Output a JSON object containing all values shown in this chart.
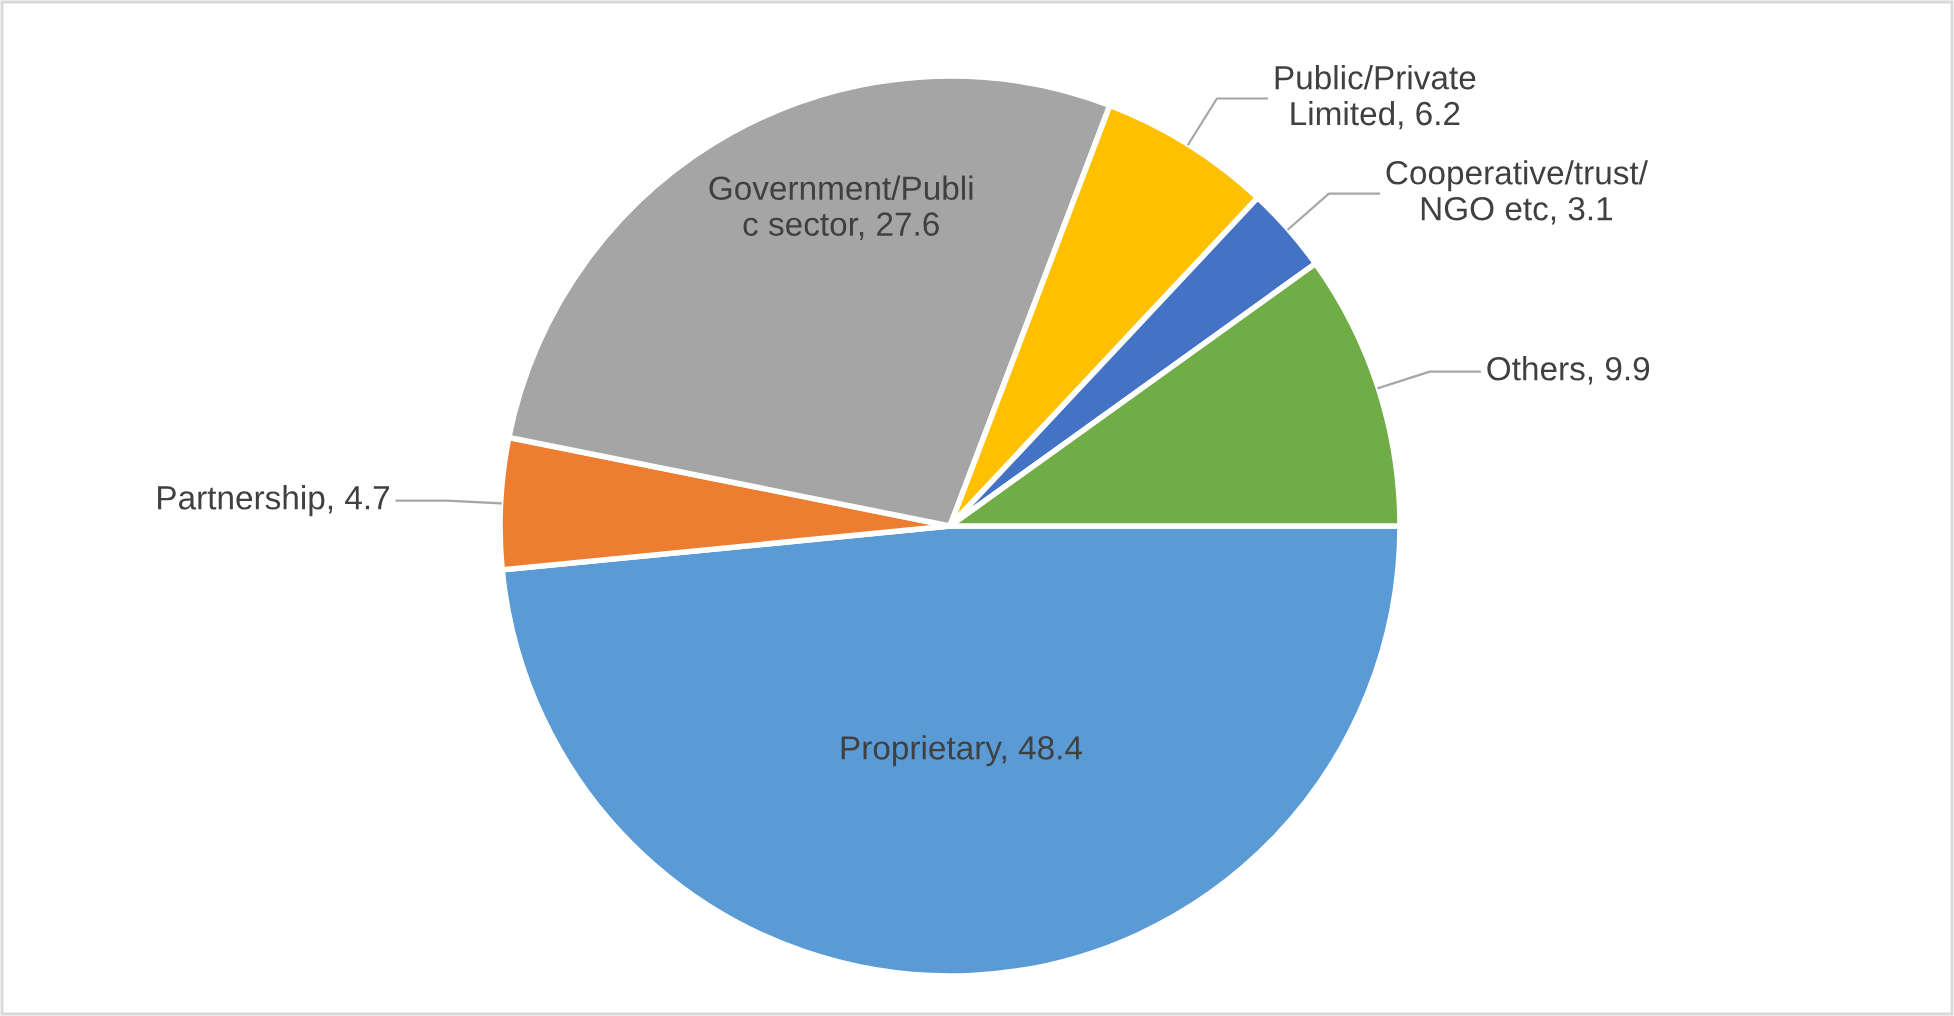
{
  "chart_data": {
    "type": "pie",
    "categories": [
      "Proprietary, 48.4",
      "Partnership, 4.7",
      "Government/Publi\nc sector, 27.6",
      "Public/Private\nLimited, 6.2",
      "Cooperative/trust/\nNGO etc, 3.1",
      "Others, 9.9"
    ],
    "values": [
      48.4,
      4.7,
      27.6,
      6.2,
      3.1,
      9.9
    ],
    "colors": [
      "#5b9bd5",
      "#ed7d31",
      "#a5a5a5",
      "#ffc000",
      "#4472c4",
      "#70ad47"
    ]
  }
}
